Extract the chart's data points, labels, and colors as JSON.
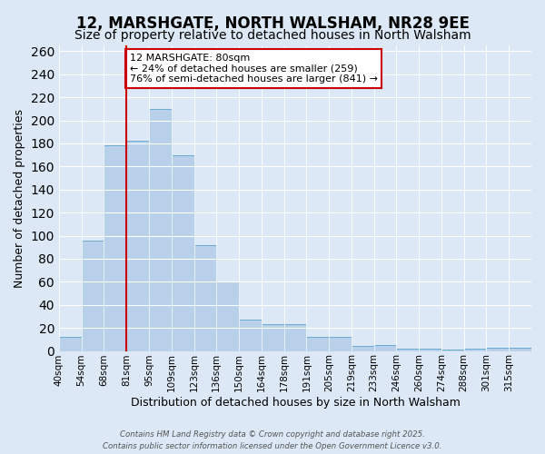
{
  "title": "12, MARSHGATE, NORTH WALSHAM, NR28 9EE",
  "subtitle": "Size of property relative to detached houses in North Walsham",
  "xlabel": "Distribution of detached houses by size in North Walsham",
  "ylabel": "Number of detached properties",
  "bar_labels": [
    "40sqm",
    "54sqm",
    "68sqm",
    "81sqm",
    "95sqm",
    "109sqm",
    "123sqm",
    "136sqm",
    "150sqm",
    "164sqm",
    "178sqm",
    "191sqm",
    "205sqm",
    "219sqm",
    "233sqm",
    "246sqm",
    "260sqm",
    "274sqm",
    "288sqm",
    "301sqm",
    "315sqm"
  ],
  "bar_values": [
    12,
    96,
    178,
    182,
    210,
    170,
    92,
    60,
    27,
    23,
    23,
    12,
    12,
    4,
    5,
    2,
    2,
    1,
    2,
    3,
    3
  ],
  "bar_color": "#b8d0ea",
  "bar_edge_color": "#6aaad4",
  "vline_index": 3,
  "vline_color": "#cc0000",
  "annotation_text": "12 MARSHGATE: 80sqm\n← 24% of detached houses are smaller (259)\n76% of semi-detached houses are larger (841) →",
  "annotation_box_color": "#ffffff",
  "annotation_box_edge_color": "#cc0000",
  "ylim": [
    0,
    265
  ],
  "yticks": [
    0,
    20,
    40,
    60,
    80,
    100,
    120,
    140,
    160,
    180,
    200,
    220,
    240,
    260
  ],
  "background_color": "#dce8f5",
  "plot_bg_color": "#dce8f5",
  "footer1": "Contains HM Land Registry data © Crown copyright and database right 2025.",
  "footer2": "Contains public sector information licensed under the Open Government Licence v3.0.",
  "title_fontsize": 12,
  "subtitle_fontsize": 10,
  "xlabel_fontsize": 9,
  "ylabel_fontsize": 9,
  "tick_fontsize": 7.5,
  "annot_fontsize": 8
}
